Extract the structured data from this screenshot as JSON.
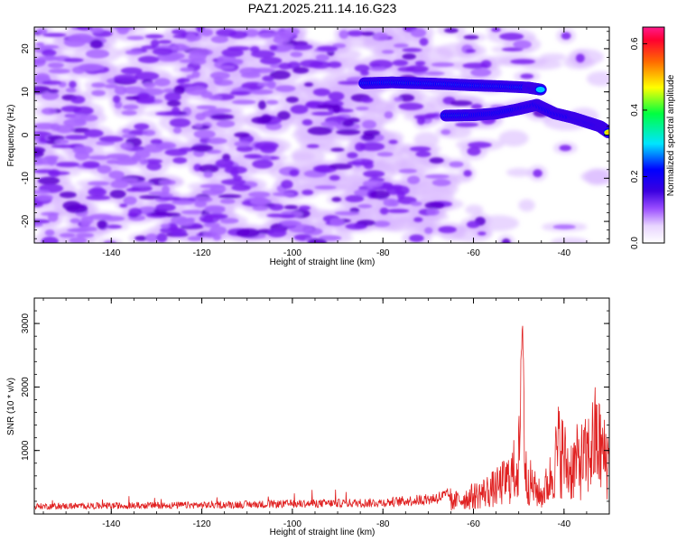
{
  "title": "PAZ1.2025.211.14.16.G23",
  "colors": {
    "snr_line": "#e02020",
    "axis": "#000000",
    "colorscale": [
      "#ffffff",
      "#d9b8ff",
      "#9a4dff",
      "#6a00d8",
      "#0000ff",
      "#00e5ff",
      "#00ff40",
      "#ffff00",
      "#ff6a00",
      "#ff0040",
      "#ff1a8c"
    ]
  },
  "chart_data": [
    {
      "type": "heatmap",
      "title": "PAZ1.2025.211.14.16.G23",
      "xlabel": "Height of straight line (km)",
      "ylabel": "Frequency (Hz)",
      "xlim": [
        -157,
        -30
      ],
      "ylim": [
        -25,
        25
      ],
      "xticks": [
        "-140",
        "-120",
        "-100",
        "-80",
        "-60",
        "-40"
      ],
      "yticks": [
        "-20",
        "-10",
        "0",
        "10",
        "20"
      ],
      "colorbar": {
        "label": "Normalized spectral amplitude",
        "range": [
          0,
          0.65
        ],
        "ticks": [
          "0.0",
          "0.2",
          "0.4",
          "0.6"
        ]
      },
      "features": [
        {
          "name": "upper band",
          "x": [
            -84,
            -78,
            -72,
            -66,
            -60,
            -54,
            -48,
            -45
          ],
          "freq": [
            12,
            12.2,
            12,
            11.8,
            11.5,
            11.3,
            11,
            10.5
          ],
          "amplitude": [
            0.25,
            0.28,
            0.3,
            0.22,
            0.2,
            0.18,
            0.17,
            0.2
          ]
        },
        {
          "name": "lower band",
          "x": [
            -66,
            -60,
            -55,
            -50,
            -46,
            -42,
            -38,
            -35,
            -32,
            -30
          ],
          "freq": [
            4.5,
            4.6,
            5,
            6,
            7,
            5,
            4,
            3,
            2,
            0.5
          ],
          "amplitude": [
            0.32,
            0.35,
            0.38,
            0.35,
            0.3,
            0.4,
            0.6,
            0.55,
            0.5,
            0.4
          ]
        }
      ]
    },
    {
      "type": "line",
      "xlabel": "Height of straight line (km)",
      "ylabel": "SNR (10 * v/v)",
      "xlim": [
        -157,
        -30
      ],
      "ylim": [
        0,
        3400
      ],
      "xticks": [
        "-140",
        "-120",
        "-100",
        "-80",
        "-60",
        "-40"
      ],
      "yticks": [
        "1000",
        "2000",
        "3000"
      ],
      "envelope": {
        "x": [
          -157,
          -140,
          -120,
          -100,
          -80,
          -70,
          -65,
          -60,
          -55,
          -52,
          -50,
          -49.2,
          -48.5,
          -47,
          -45,
          -43,
          -41,
          -39,
          -37,
          -35,
          -33,
          -31,
          -30
        ],
        "y": [
          120,
          130,
          140,
          160,
          180,
          230,
          300,
          450,
          650,
          900,
          1300,
          3350,
          1000,
          700,
          450,
          900,
          1700,
          1100,
          1300,
          1400,
          1900,
          1400,
          1350
        ]
      }
    }
  ]
}
